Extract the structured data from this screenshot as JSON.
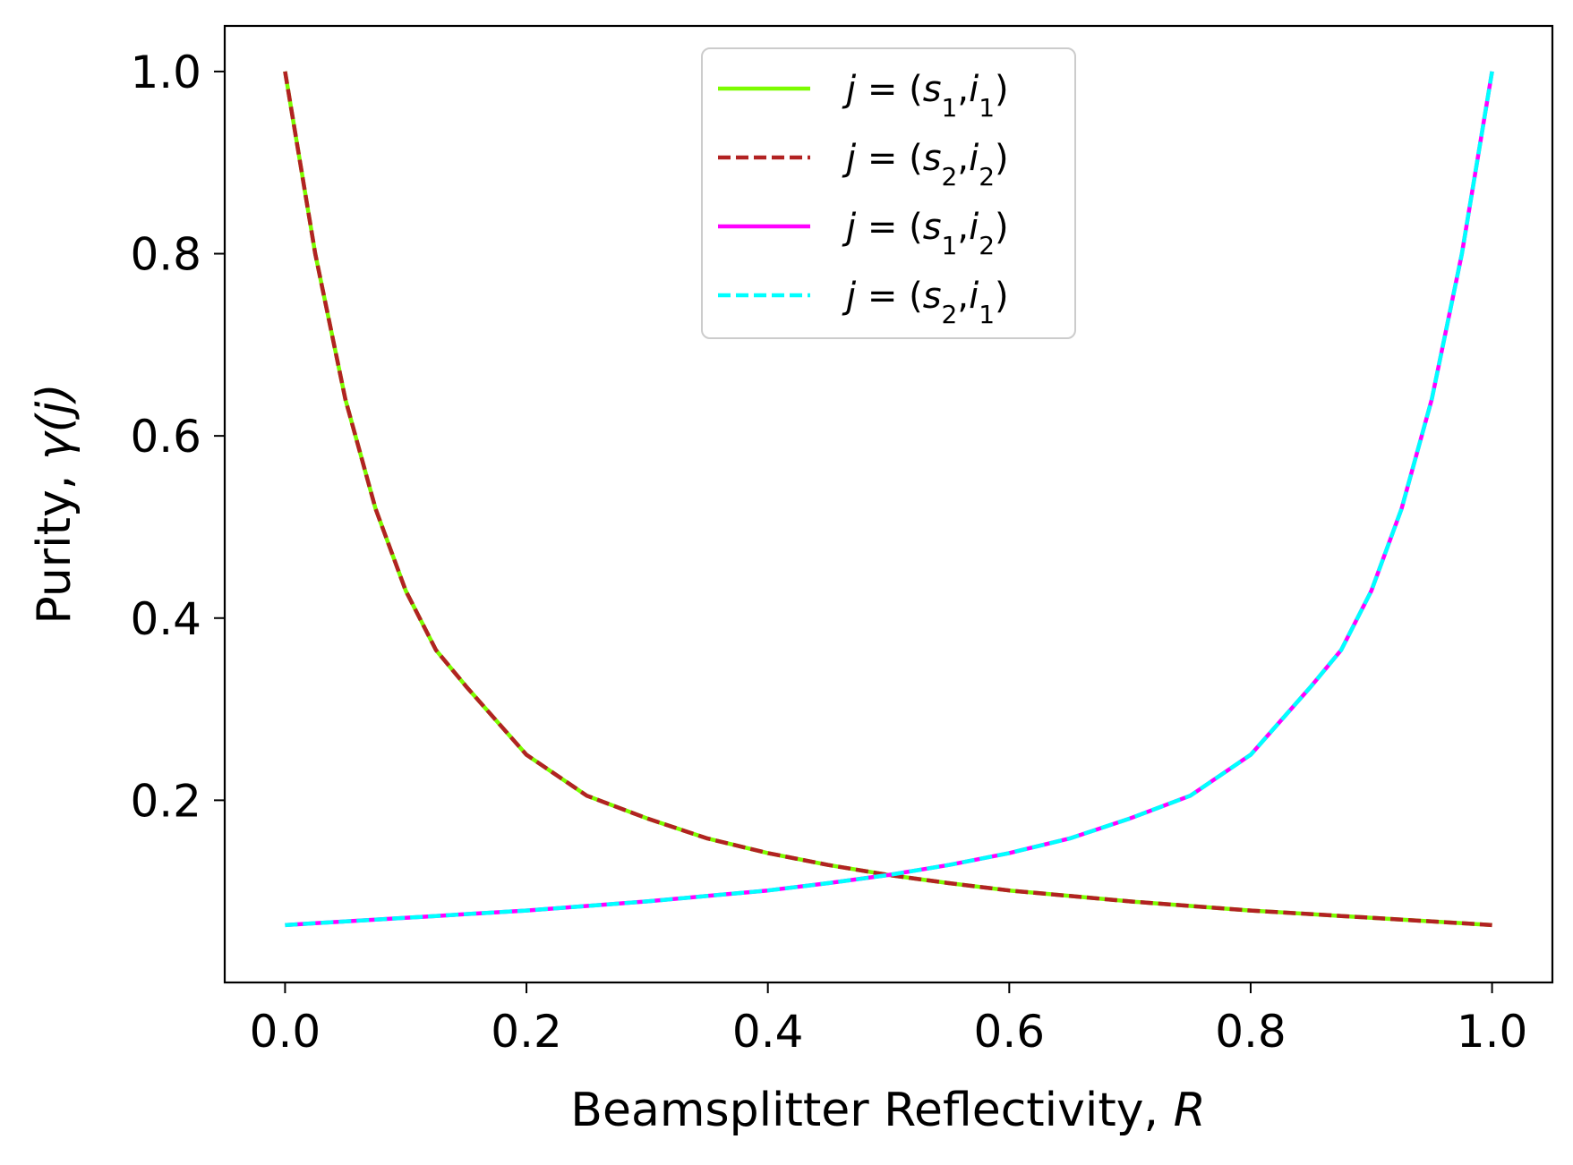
{
  "chart_data": {
    "type": "line",
    "xlabel": "Beamsplitter Reflectivity, ",
    "xlabel_var": "R",
    "ylabel": "Purity, ",
    "ylabel_var": "γ(j)",
    "xlim": [
      -0.05,
      1.05
    ],
    "ylim": [
      0.0,
      1.05
    ],
    "grid": false,
    "legend_position": "top-center",
    "x": [
      0.0,
      0.025,
      0.05,
      0.075,
      0.1,
      0.125,
      0.15,
      0.2,
      0.25,
      0.3,
      0.35,
      0.4,
      0.45,
      0.5,
      0.55,
      0.6,
      0.65,
      0.7,
      0.75,
      0.8,
      0.85,
      0.875,
      0.9,
      0.925,
      0.95,
      0.975,
      1.0
    ],
    "xticks": [
      "0.0",
      "0.2",
      "0.4",
      "0.6",
      "0.8",
      "1.0"
    ],
    "yticks": [
      "0.2",
      "0.4",
      "0.6",
      "0.8",
      "1.0"
    ],
    "series": [
      {
        "name": "j = (s1,i1)",
        "legend": {
          "j": "j",
          "eq": " = (",
          "s": "s",
          "s_sub": "1",
          "comma": ",",
          "i": "i",
          "i_sub": "1",
          "close": ")"
        },
        "color": "#7CFC00",
        "style": "solid",
        "values": [
          1.0,
          0.8,
          0.64,
          0.52,
          0.43,
          0.365,
          0.325,
          0.25,
          0.205,
          0.18,
          0.158,
          0.142,
          0.129,
          0.118,
          0.109,
          0.101,
          0.095,
          0.089,
          0.084,
          0.079,
          0.075,
          0.073,
          0.071,
          0.069,
          0.067,
          0.065,
          0.063
        ]
      },
      {
        "name": "j = (s2,i2)",
        "legend": {
          "j": "j",
          "eq": " = (",
          "s": "s",
          "s_sub": "2",
          "comma": ",",
          "i": "i",
          "i_sub": "2",
          "close": ")"
        },
        "color": "#B22222",
        "style": "dashed",
        "values": [
          1.0,
          0.8,
          0.64,
          0.52,
          0.43,
          0.365,
          0.325,
          0.25,
          0.205,
          0.18,
          0.158,
          0.142,
          0.129,
          0.118,
          0.109,
          0.101,
          0.095,
          0.089,
          0.084,
          0.079,
          0.075,
          0.073,
          0.071,
          0.069,
          0.067,
          0.065,
          0.063
        ]
      },
      {
        "name": "j = (s1,i2)",
        "legend": {
          "j": "j",
          "eq": " = (",
          "s": "s",
          "s_sub": "1",
          "comma": ",",
          "i": "i",
          "i_sub": "2",
          "close": ")"
        },
        "color": "#FF00FF",
        "style": "solid",
        "values": [
          0.063,
          0.065,
          0.067,
          0.069,
          0.071,
          0.073,
          0.075,
          0.079,
          0.084,
          0.089,
          0.095,
          0.101,
          0.109,
          0.118,
          0.129,
          0.142,
          0.158,
          0.18,
          0.205,
          0.25,
          0.325,
          0.365,
          0.43,
          0.52,
          0.64,
          0.8,
          1.0
        ]
      },
      {
        "name": "j = (s2,i1)",
        "legend": {
          "j": "j",
          "eq": " = (",
          "s": "s",
          "s_sub": "2",
          "comma": ",",
          "i": "i",
          "i_sub": "1",
          "close": ")"
        },
        "color": "#00FFFF",
        "style": "dashed",
        "values": [
          0.063,
          0.065,
          0.067,
          0.069,
          0.071,
          0.073,
          0.075,
          0.079,
          0.084,
          0.089,
          0.095,
          0.101,
          0.109,
          0.118,
          0.129,
          0.142,
          0.158,
          0.18,
          0.205,
          0.25,
          0.325,
          0.365,
          0.43,
          0.52,
          0.64,
          0.8,
          1.0
        ]
      }
    ]
  }
}
